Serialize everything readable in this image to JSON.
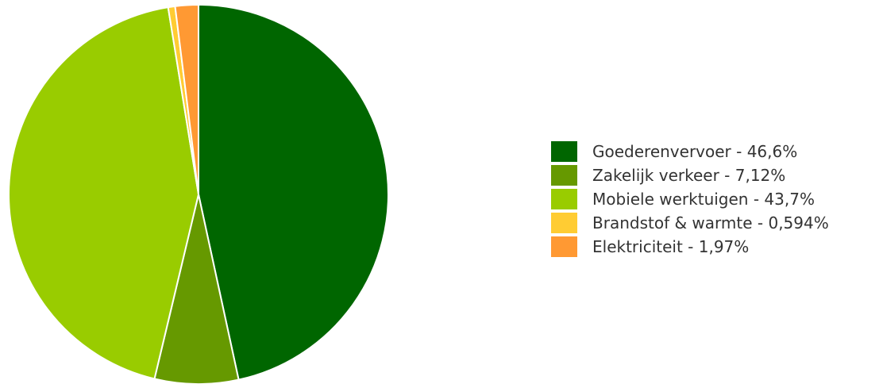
{
  "chart_data": {
    "type": "pie",
    "start_angle_deg": 0,
    "direction": "clockwise",
    "legend_position": "right",
    "slices": [
      {
        "label": "Goederenvervoer - 46,6%",
        "value": 46.6,
        "color": "#006600"
      },
      {
        "label": "Zakelijk verkeer - 7,12%",
        "value": 7.12,
        "color": "#669900"
      },
      {
        "label": "Mobiele werktuigen - 43,7%",
        "value": 43.7,
        "color": "#99cc00"
      },
      {
        "label": "Brandstof & warmte - 0,594%",
        "value": 0.594,
        "color": "#ffcc33"
      },
      {
        "label": "Elektriciteit - 1,97%",
        "value": 1.97,
        "color": "#ff9933"
      }
    ]
  }
}
